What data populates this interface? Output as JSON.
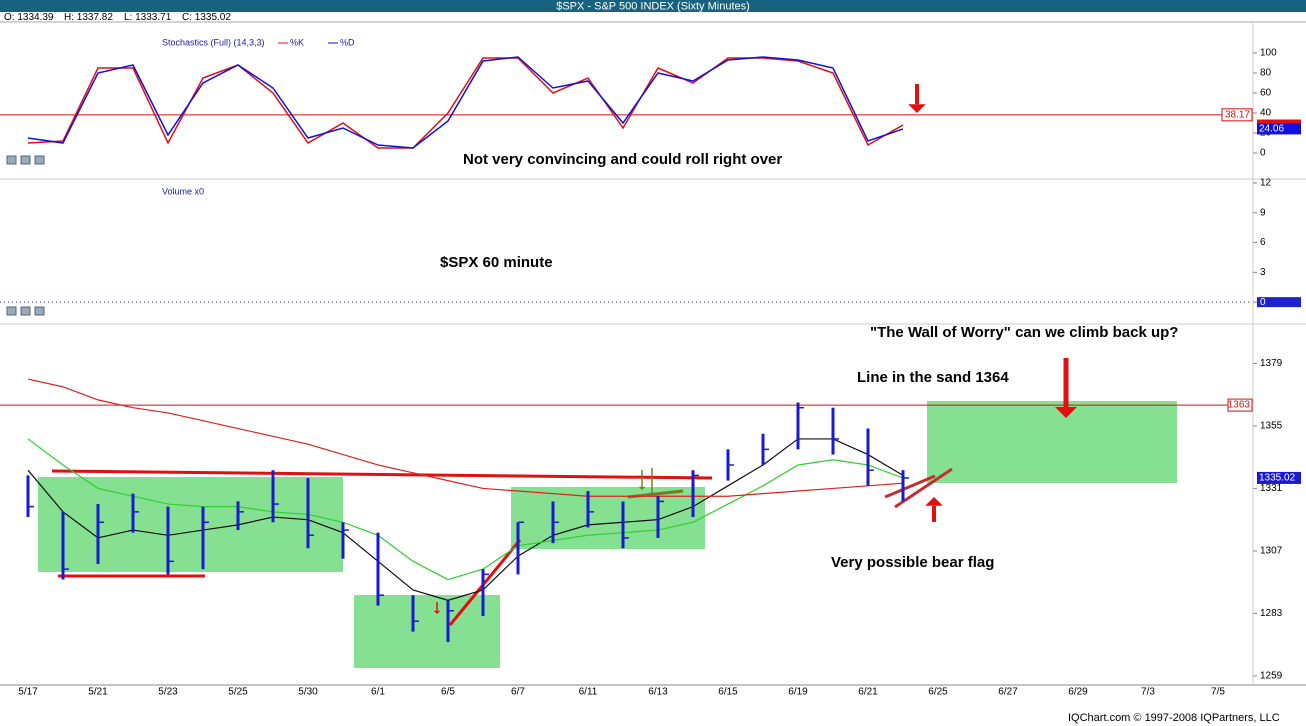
{
  "title": "$SPX - S&P 500 INDEX (Sixty Minutes)",
  "quote": [
    "O: 1334.39",
    "H: 1337.82",
    "L: 1333.71",
    "C: 1335.02"
  ],
  "footer": "IQChart.com © 1997-2008 IQPartners, LLC",
  "chart_data": [
    {
      "type": "line",
      "legend": "Stochastics (Full) (14,3,3)",
      "annotation": "Not very convincing and could roll right over",
      "ylim": [
        -25,
        129
      ],
      "yticks": [
        0,
        20,
        40,
        60,
        80,
        100
      ],
      "hline": 38.17,
      "hline_color": "#d01010",
      "series": [
        {
          "name": "%K",
          "color": "#e01010",
          "values": [
            10,
            12,
            85,
            85,
            10,
            75,
            88,
            60,
            10,
            30,
            5,
            5,
            40,
            95,
            95,
            60,
            75,
            25,
            85,
            70,
            95,
            95,
            92,
            80,
            8,
            28,
            null,
            null,
            null,
            null,
            null,
            null,
            null,
            null,
            null
          ]
        },
        {
          "name": "%D",
          "color": "#1010e0",
          "values": [
            15,
            10,
            80,
            88,
            18,
            70,
            88,
            65,
            15,
            25,
            8,
            5,
            32,
            92,
            96,
            65,
            72,
            30,
            80,
            72,
            93,
            96,
            93,
            85,
            12,
            24.06,
            null,
            null,
            null,
            null,
            null,
            null,
            null,
            null,
            null
          ]
        }
      ]
    },
    {
      "type": "line",
      "legend": "Volume x0",
      "annotation": "$SPX 60 minute",
      "ylim": [
        -2,
        12.3
      ],
      "yticks": [
        0,
        3,
        6,
        9,
        12
      ],
      "hline": 0,
      "hline_color": "#2020d0",
      "series": []
    },
    {
      "type": "ohlc",
      "color": "#1a1ad0",
      "annotations": [
        "\"The Wall of Worry\" can we climb back up?",
        "Line in the sand 1364",
        "Very possible bear flag"
      ],
      "categories": [
        "5/17",
        null,
        "5/21",
        null,
        "5/23",
        null,
        "5/25",
        null,
        "5/30",
        null,
        "6/1",
        null,
        "6/5",
        null,
        "6/7",
        null,
        "6/11",
        null,
        "6/13",
        null,
        "6/15",
        null,
        "6/19",
        null,
        "6/21",
        null,
        "6/25",
        null,
        "6/27",
        null,
        "6/29",
        null,
        "7/3",
        null,
        "7/5"
      ],
      "ylim": [
        1255.5,
        1388
      ],
      "yticks": [
        1259,
        1283,
        1307,
        1331,
        1355,
        1379
      ],
      "hline": 1363,
      "hline_color": "#d01010",
      "high": [
        1336,
        1322,
        1325,
        1329,
        1324,
        1324,
        1326,
        1338,
        1335,
        1318,
        1314,
        1290,
        1288,
        1300,
        1318,
        1326,
        1330,
        1326,
        1328,
        1338,
        1346,
        1352,
        1364,
        1362,
        1354,
        1338,
        null,
        null,
        null,
        null,
        null,
        null,
        null,
        null,
        null
      ],
      "low": [
        1320,
        1296,
        1302,
        1314,
        1298,
        1300,
        1315,
        1318,
        1308,
        1304,
        1286,
        1276,
        1272,
        1282,
        1298,
        1310,
        1316,
        1308,
        1312,
        1320,
        1334,
        1340,
        1346,
        1344,
        1332,
        1326,
        null,
        null,
        null,
        null,
        null,
        null,
        null,
        null,
        null
      ],
      "close": [
        1324,
        1300,
        1318,
        1322,
        1303,
        1318,
        1322,
        1325,
        1313,
        1315,
        1290,
        1280,
        1284,
        1298,
        1318,
        1318,
        1322,
        1312,
        1326,
        1336,
        1340,
        1346,
        1362,
        1350,
        1338,
        1335.02,
        null,
        null,
        null,
        null,
        null,
        null,
        null,
        null,
        null
      ],
      "series": [
        {
          "color": "#101010",
          "values": [
            1338,
            1322,
            1312,
            1315,
            1313,
            1315,
            1317,
            1320,
            1319,
            1314,
            1303,
            1292,
            1288,
            1292,
            1305,
            1313,
            1317,
            1318,
            1319,
            1324,
            1332,
            1340,
            1350,
            1350,
            1344,
            1336,
            null,
            null,
            null,
            null,
            null,
            null,
            null,
            null,
            null
          ]
        },
        {
          "color": "#30d030",
          "values": [
            1350,
            1340,
            1331,
            1328,
            1325,
            1324,
            1324,
            1322,
            1321,
            1318,
            1313,
            1303,
            1296,
            1300,
            1309,
            1311,
            1313,
            1314,
            1315,
            1318,
            1325,
            1332,
            1340,
            1342,
            1340,
            1335,
            null,
            null,
            null,
            null,
            null,
            null,
            null,
            null,
            null
          ]
        },
        {
          "color": "#e02020",
          "values": [
            1373,
            1370,
            1365,
            1362,
            1360,
            1357,
            1354,
            1351,
            1348,
            1344,
            1340,
            1337,
            1334,
            1331,
            1330,
            1329,
            1328,
            1328,
            1328,
            1328,
            1328,
            1329,
            1330,
            1331,
            1332,
            1333,
            null,
            null,
            null,
            null,
            null,
            null,
            null,
            null,
            null
          ]
        }
      ]
    }
  ]
}
